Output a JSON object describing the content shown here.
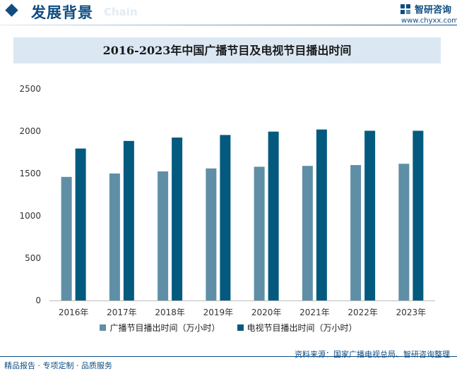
{
  "header": {
    "title": "发展背景",
    "subtitle": "Chain",
    "brand_name": "智研咨询",
    "brand_url": "www.chyxx.com"
  },
  "colors": {
    "primary": "#0f4c81",
    "series_light": "#5f8fa6",
    "series_dark": "#045a7e",
    "title_band": "#dbe8f3"
  },
  "chart_data": {
    "type": "bar",
    "title": "2016-2023年中国广播节目及电视节目播出时间",
    "categories": [
      "2016年",
      "2017年",
      "2018年",
      "2019年",
      "2020年",
      "2021年",
      "2022年",
      "2023年"
    ],
    "series": [
      {
        "name": "广播节目播出时间（万小时）",
        "values": [
          1460,
          1500,
          1525,
          1560,
          1580,
          1590,
          1600,
          1615
        ]
      },
      {
        "name": "电视节目播出时间（万小时）",
        "values": [
          1795,
          1885,
          1925,
          1955,
          1995,
          2020,
          2005,
          2005
        ]
      }
    ],
    "yticks": [
      0,
      500,
      1000,
      1500,
      2000,
      2500
    ],
    "ylim": [
      0,
      2500
    ],
    "grid": false,
    "legend_position": "bottom"
  },
  "footer": {
    "left": "精品报告 · 专项定制 · 品质服务",
    "source": "资料来源：国家广播电视总局、智研咨询整理"
  }
}
